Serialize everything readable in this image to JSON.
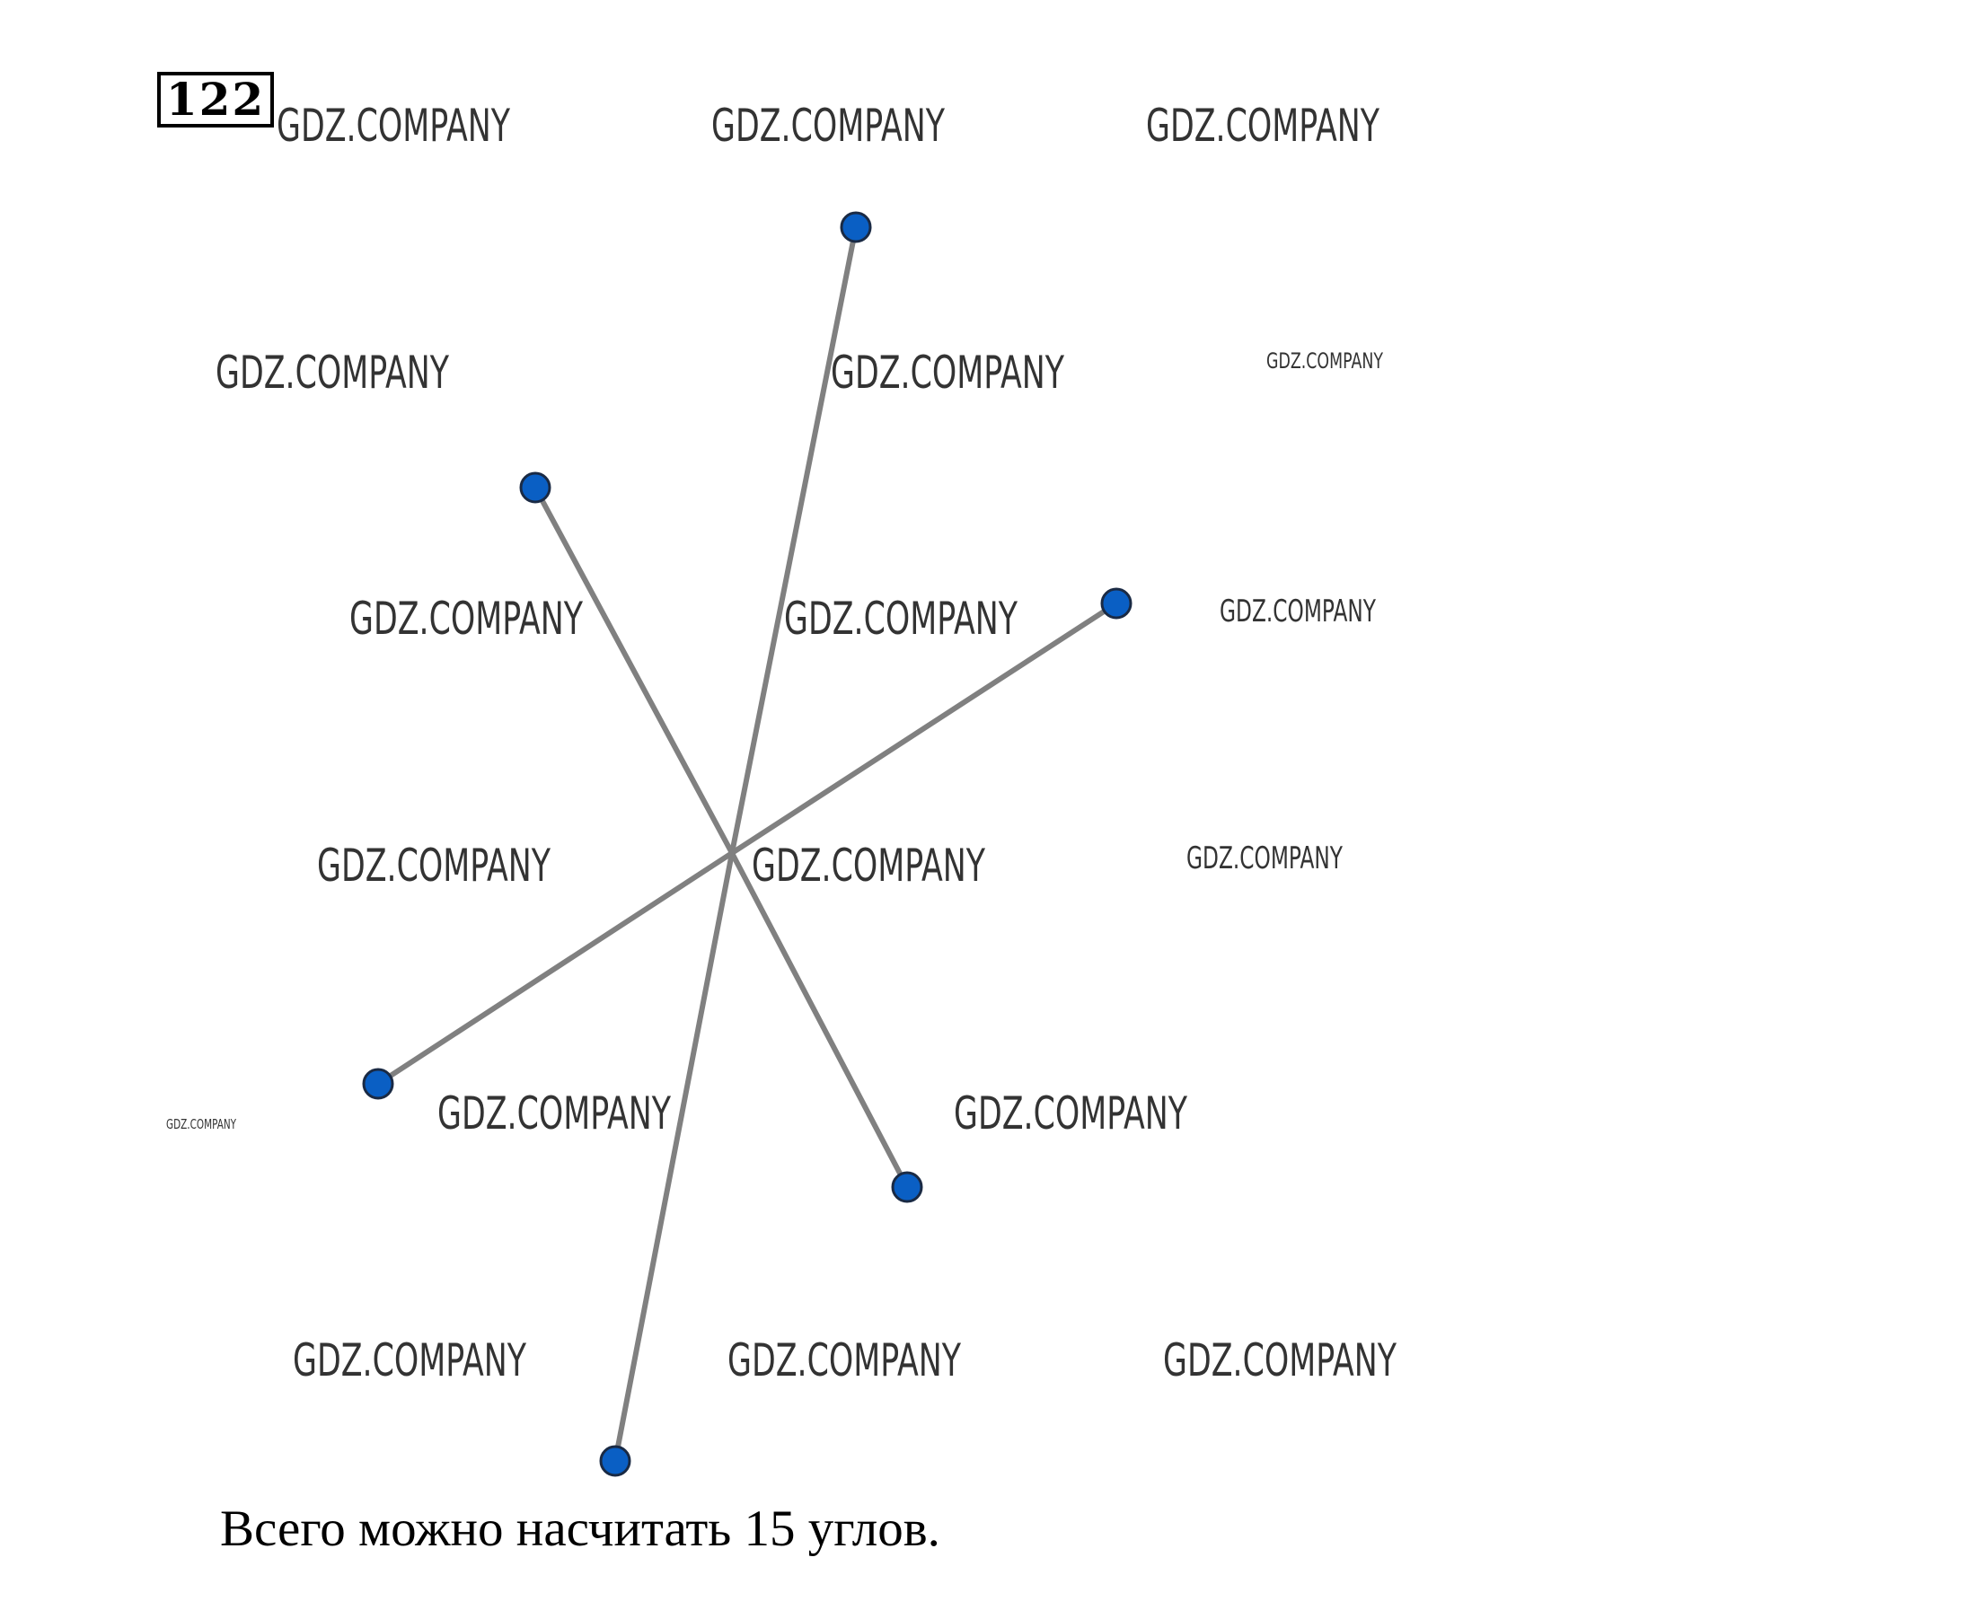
{
  "problem_number": "122",
  "watermark_text": "GDZ.COMPANY",
  "answer_text": "Всего можно насчитать 15 углов.",
  "figure": {
    "rays": [
      {
        "name": "ray-top"
      },
      {
        "name": "ray-upper-left"
      },
      {
        "name": "ray-right"
      },
      {
        "name": "ray-lower-left"
      },
      {
        "name": "ray-lower-right"
      },
      {
        "name": "ray-bottom"
      }
    ],
    "ray_color": "#808080",
    "point_color": "#0a5fc4",
    "point_outline_color": "#1a2a44"
  }
}
